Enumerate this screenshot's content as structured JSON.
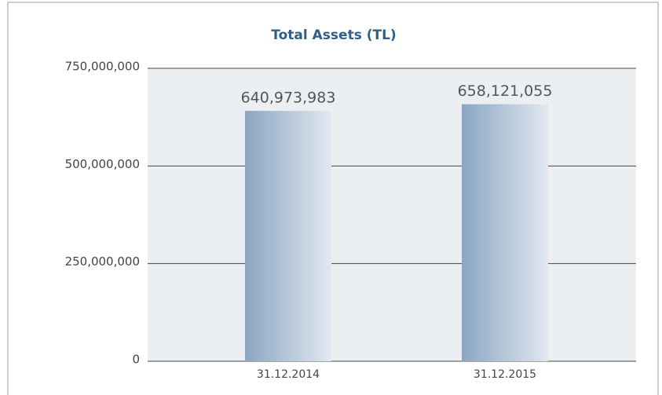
{
  "chart_data": {
    "type": "bar",
    "title": "Total Assets (TL)",
    "categories": [
      "31.12.2014",
      "31.12.2015"
    ],
    "values": [
      640973983,
      658121055
    ],
    "value_labels": [
      "640,973,983",
      "658,121,055"
    ],
    "ylim": [
      0,
      750000000
    ],
    "yticks": [
      0,
      {
        "value": 250000000,
        "label": "250,000,000"
      },
      {
        "value": 500000000,
        "label": "500,000,000"
      },
      {
        "value": 750000000,
        "label": "750,000,000"
      }
    ],
    "grid": true
  }
}
